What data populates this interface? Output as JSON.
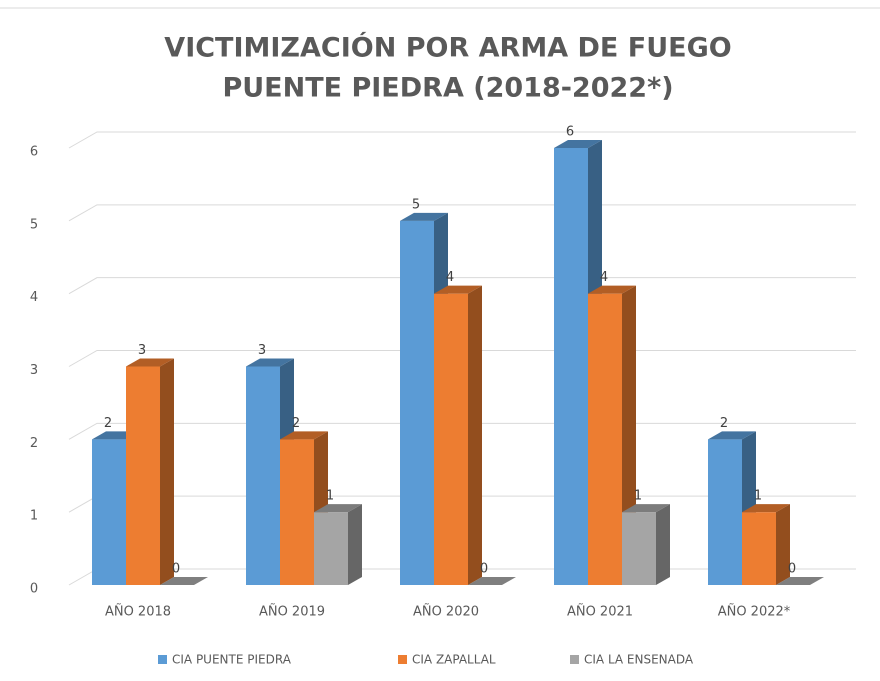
{
  "chart_data": {
    "type": "bar3d",
    "title": "VICTIMIZACIÓN POR ARMA DE FUEGO",
    "subtitle": "PUENTE PIEDRA (2018-2022*)",
    "categories": [
      "AÑO 2018",
      "AÑO 2019",
      "AÑO 2020",
      "AÑO 2021",
      "AÑO 2022*"
    ],
    "series": [
      {
        "name": "CIA PUENTE PIEDRA",
        "color": "#5b9bd5",
        "values": [
          2,
          3,
          5,
          6,
          2
        ]
      },
      {
        "name": "CIA ZAPALLAL",
        "color": "#ed7d31",
        "values": [
          3,
          2,
          4,
          4,
          1
        ]
      },
      {
        "name": "CIA LA ENSENADA",
        "color": "#a5a5a5",
        "values": [
          0,
          1,
          0,
          1,
          0
        ]
      }
    ],
    "ylim": [
      0,
      6
    ],
    "yticks": [
      0,
      1,
      2,
      3,
      4,
      5,
      6
    ],
    "grid": true,
    "legend": "bottom"
  }
}
